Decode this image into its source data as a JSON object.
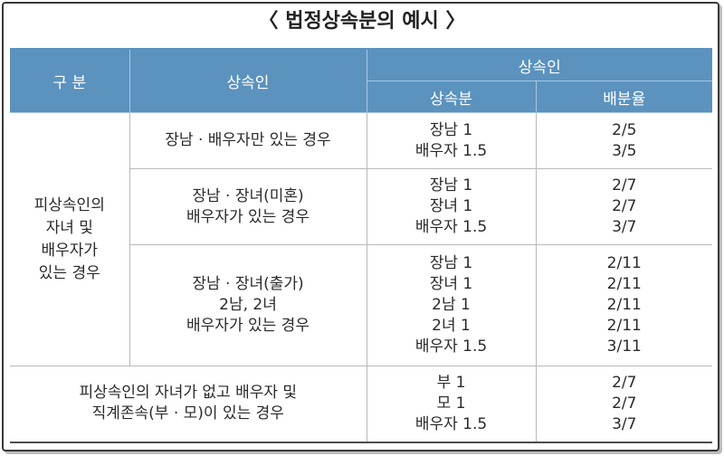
{
  "title": "〈 법정상속분의 예시 〉",
  "header": {
    "col_category": "구  분",
    "col_heir": "상속인",
    "col_group": "상속인",
    "col_share": "상속분",
    "col_ratio": "배분율"
  },
  "group_label": "피상속인의 자녀 및 배우자가 있는 경우",
  "group_label_lines": [
    "피상속인의",
    "자녀 및",
    "배우자가",
    "있는 경우"
  ],
  "rows": [
    {
      "heir_lines": [
        "장남 · 배우자만 있는 경우"
      ],
      "shares": [
        "장남 1",
        "배우자 1.5"
      ],
      "ratios": [
        "2/5",
        "3/5"
      ]
    },
    {
      "heir_lines": [
        "장남 · 장녀(미혼)",
        "배우자가 있는 경우"
      ],
      "shares": [
        "장남 1",
        "장녀 1",
        "배우자 1.5"
      ],
      "ratios": [
        "2/7",
        "2/7",
        "3/7"
      ]
    },
    {
      "heir_lines": [
        "장남 · 장녀(출가)",
        "2남, 2녀",
        "배우자가 있는 경우"
      ],
      "shares": [
        "장남 1",
        "장녀 1",
        "2남 1",
        "2녀 1",
        "배우자 1.5"
      ],
      "ratios": [
        "2/11",
        "2/11",
        "2/11",
        "2/11",
        "3/11"
      ]
    }
  ],
  "last_row": {
    "heir_lines": [
      "피상속인의 자녀가 없고 배우자 및",
      "직계존속(부 · 모)이 있는 경우"
    ],
    "shares": [
      "부 1",
      "모 1",
      "배우자 1.5"
    ],
    "ratios": [
      "2/7",
      "2/7",
      "3/7"
    ]
  }
}
